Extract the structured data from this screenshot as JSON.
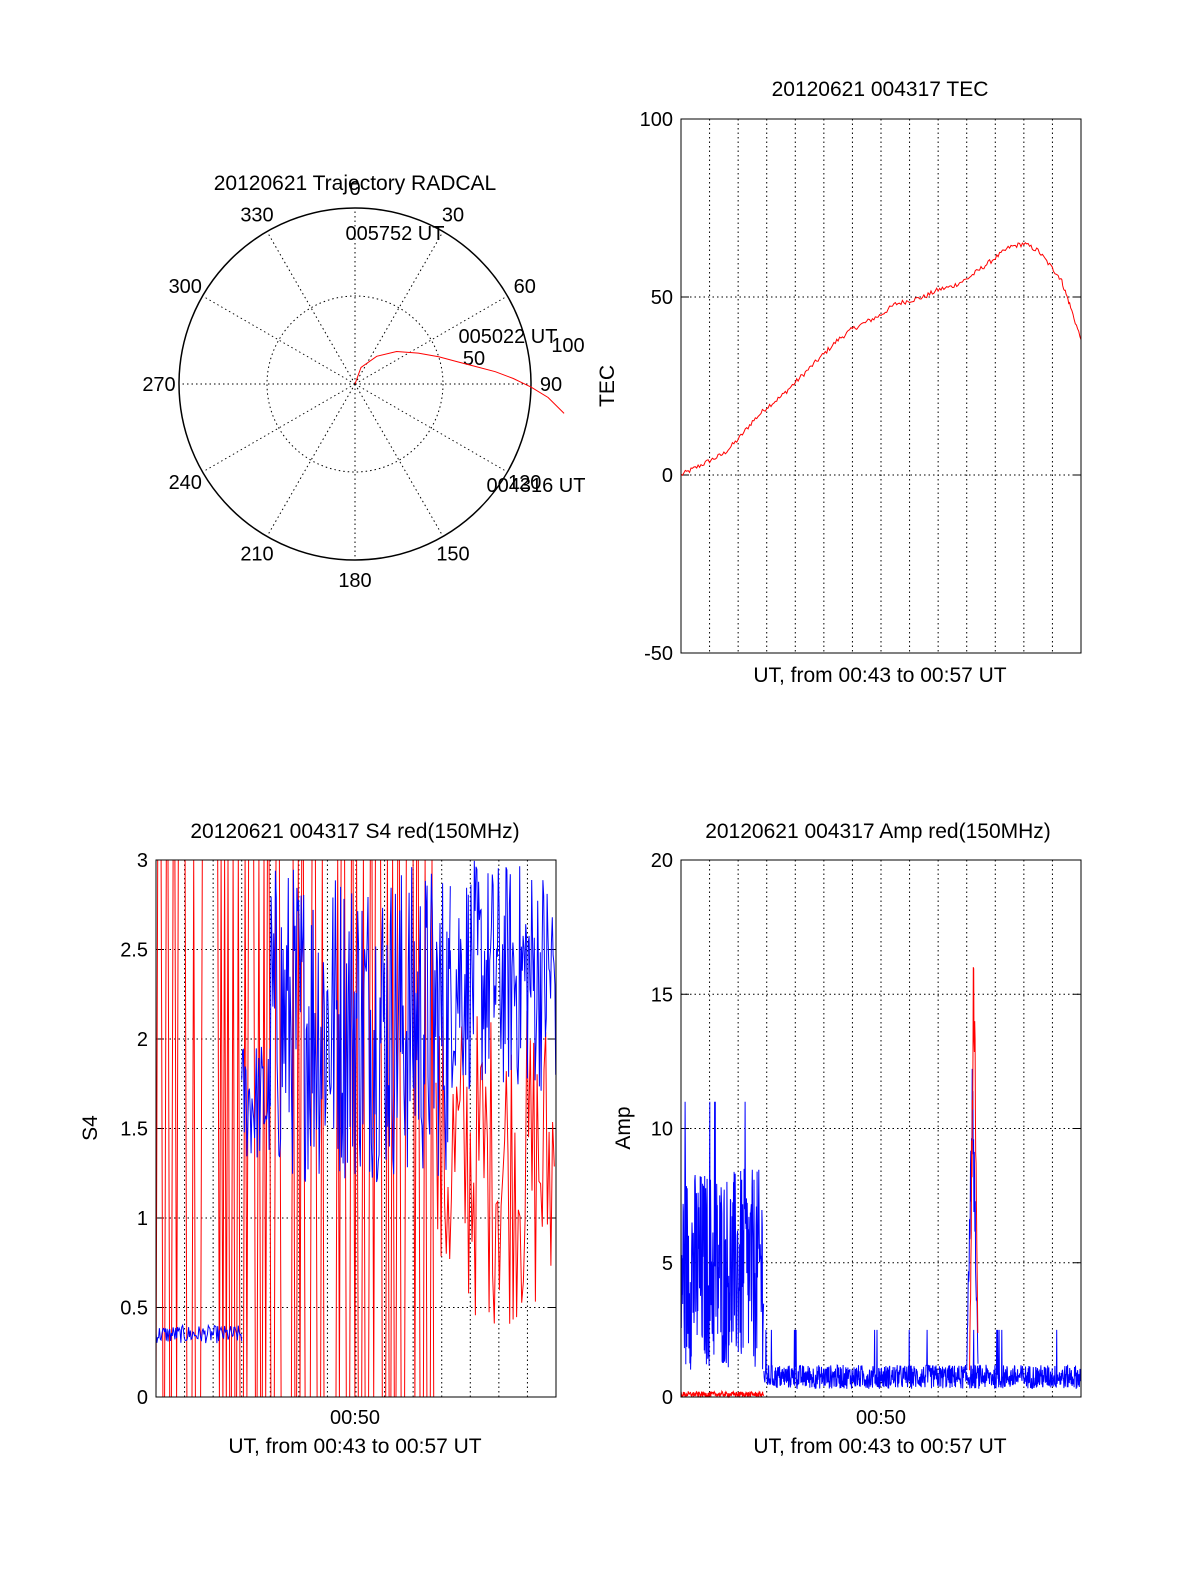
{
  "colors": {
    "red_series": "#ff0000",
    "blue_series": "#0000ff",
    "axes": "#000000"
  },
  "chart_data": [
    {
      "type": "polar",
      "title": "20120621 Trajectory RADCAL",
      "angle_labels": [
        "0",
        "30",
        "60",
        "90",
        "120",
        "150",
        "180",
        "210",
        "240",
        "270",
        "300",
        "330"
      ],
      "radial_labels": [
        "50",
        "100"
      ],
      "rmax": 100,
      "grid": true,
      "annotations": [
        {
          "text": "005752 UT",
          "az": 0,
          "zen": 0
        },
        {
          "text": "005022 UT",
          "az": 67,
          "zen": 70
        },
        {
          "text": "004316 UT",
          "az": 115,
          "zen": 95
        }
      ],
      "series": [
        {
          "color": "red",
          "points": [
            [
              0,
              0
            ],
            [
              10,
              20
            ],
            [
              20,
              38
            ],
            [
              30,
              52
            ],
            [
              40,
              64
            ],
            [
              50,
              72
            ],
            [
              60,
              78
            ],
            [
              70,
              82
            ],
            [
              80,
              85
            ],
            [
              90,
              88
            ],
            [
              100,
              91
            ],
            [
              110,
              94
            ],
            [
              120,
              98
            ]
          ]
        }
      ]
    },
    {
      "type": "line",
      "title": "20120621 004317 TEC",
      "xlabel": "UT, from 00:43 to 00:57 UT",
      "ylabel": "TEC",
      "xlim": [
        0,
        14
      ],
      "ylim": [
        -50,
        100
      ],
      "yticks": [
        "-50",
        "0",
        "50",
        "100"
      ],
      "grid": true,
      "series": [
        {
          "color": "red",
          "x": [
            0,
            0.5,
            1,
            1.5,
            2,
            2.5,
            3,
            3.5,
            4,
            4.5,
            5,
            5.5,
            6,
            6.5,
            7,
            7.5,
            8,
            8.5,
            9,
            9.5,
            10,
            10.5,
            11,
            11.5,
            12,
            12.5,
            13,
            13.3,
            13.6,
            14
          ],
          "y": [
            0,
            2,
            4,
            6,
            10,
            15,
            19,
            22,
            26,
            30,
            34,
            38,
            41,
            43,
            45,
            48,
            49,
            50,
            52,
            53,
            55,
            58,
            61,
            64,
            65,
            63,
            58,
            55,
            48,
            38
          ]
        }
      ]
    },
    {
      "type": "line",
      "title": "20120621 004317 S4 red(150MHz)",
      "xlabel": "UT, from 00:43 to 00:57 UT",
      "ylabel": "S4",
      "xlim": [
        0,
        14
      ],
      "ylim": [
        0,
        3
      ],
      "yticks": [
        "0",
        "0.5",
        "1",
        "1.5",
        "2",
        "2.5",
        "3"
      ],
      "xticks": [
        {
          "value": 7,
          "label": "00:50"
        }
      ],
      "grid": true,
      "series": [
        {
          "color": "red",
          "segments": [
            {
              "x": [
                0,
                9.8
              ],
              "band": [
                0,
                3
              ],
              "style": "dropouts"
            },
            {
              "x": [
                9.8,
                14
              ],
              "band": [
                0.4,
                2.2
              ],
              "style": "noise"
            }
          ]
        },
        {
          "color": "blue",
          "segments": [
            {
              "x": [
                0,
                3
              ],
              "band": [
                0.3,
                0.4
              ],
              "style": "noise"
            },
            {
              "x": [
                3,
                4
              ],
              "band": [
                1.3,
                2
              ],
              "style": "noise"
            },
            {
              "x": [
                4,
                10.3
              ],
              "band": [
                1.2,
                3
              ],
              "style": "noise"
            },
            {
              "x": [
                10.3,
                14
              ],
              "band": [
                1.7,
                3
              ],
              "style": "noise"
            }
          ]
        }
      ]
    },
    {
      "type": "line",
      "title": "20120621 004317 Amp red(150MHz)",
      "xlabel": "UT, from 00:43 to 00:57 UT",
      "ylabel": "Amp",
      "xlim": [
        0,
        14
      ],
      "ylim": [
        0,
        20
      ],
      "yticks": [
        "0",
        "5",
        "10",
        "15",
        "20"
      ],
      "xticks": [
        {
          "value": 7,
          "label": "00:50"
        }
      ],
      "grid": true,
      "series": [
        {
          "color": "blue",
          "segments": [
            {
              "x": [
                0,
                2.9
              ],
              "band": [
                1,
                8.5
              ],
              "style": "noise",
              "max": 11
            },
            {
              "x": [
                2.9,
                14
              ],
              "band": [
                0.3,
                1.2
              ],
              "style": "noise",
              "max": 2.5
            },
            {
              "x": [
                10,
                10.4
              ],
              "band": [
                1,
                14
              ],
              "style": "spike",
              "max": 14
            }
          ]
        },
        {
          "color": "red",
          "segments": [
            {
              "x": [
                0,
                2.9
              ],
              "band": [
                0,
                0.2
              ],
              "style": "noise"
            },
            {
              "x": [
                10.1,
                10.4
              ],
              "band": [
                1,
                19
              ],
              "style": "spike",
              "max": 19
            }
          ]
        }
      ]
    }
  ]
}
